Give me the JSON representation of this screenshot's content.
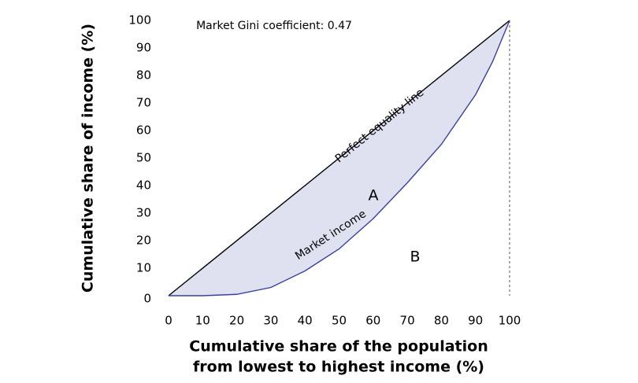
{
  "chart_data": {
    "type": "line",
    "title": "Market Gini coefficient: 0.47",
    "xlabel": [
      "Cumulative share of the population",
      "from lowest to highest income (%)"
    ],
    "ylabel": "Cumulative share of income (%)",
    "xlim": [
      0,
      100
    ],
    "ylim": [
      0,
      100
    ],
    "xticks": [
      0,
      10,
      20,
      30,
      40,
      50,
      60,
      70,
      80,
      90,
      100
    ],
    "yticks": [
      0,
      10,
      20,
      30,
      40,
      50,
      60,
      70,
      80,
      90,
      100
    ],
    "area_color": "#dfe1f0",
    "series": [
      {
        "name": "Perfect equality line",
        "color": "#000000",
        "x": [
          0,
          100
        ],
        "values": [
          0,
          100
        ]
      },
      {
        "name": "Market income",
        "color": "#3a3f9e",
        "x": [
          0,
          10,
          20,
          30,
          40,
          50,
          60,
          70,
          80,
          90,
          95,
          100
        ],
        "values": [
          0,
          0,
          0.5,
          3,
          9,
          17,
          28,
          41,
          55,
          73,
          85,
          100
        ]
      }
    ],
    "area_labels": [
      "A",
      "B"
    ]
  }
}
